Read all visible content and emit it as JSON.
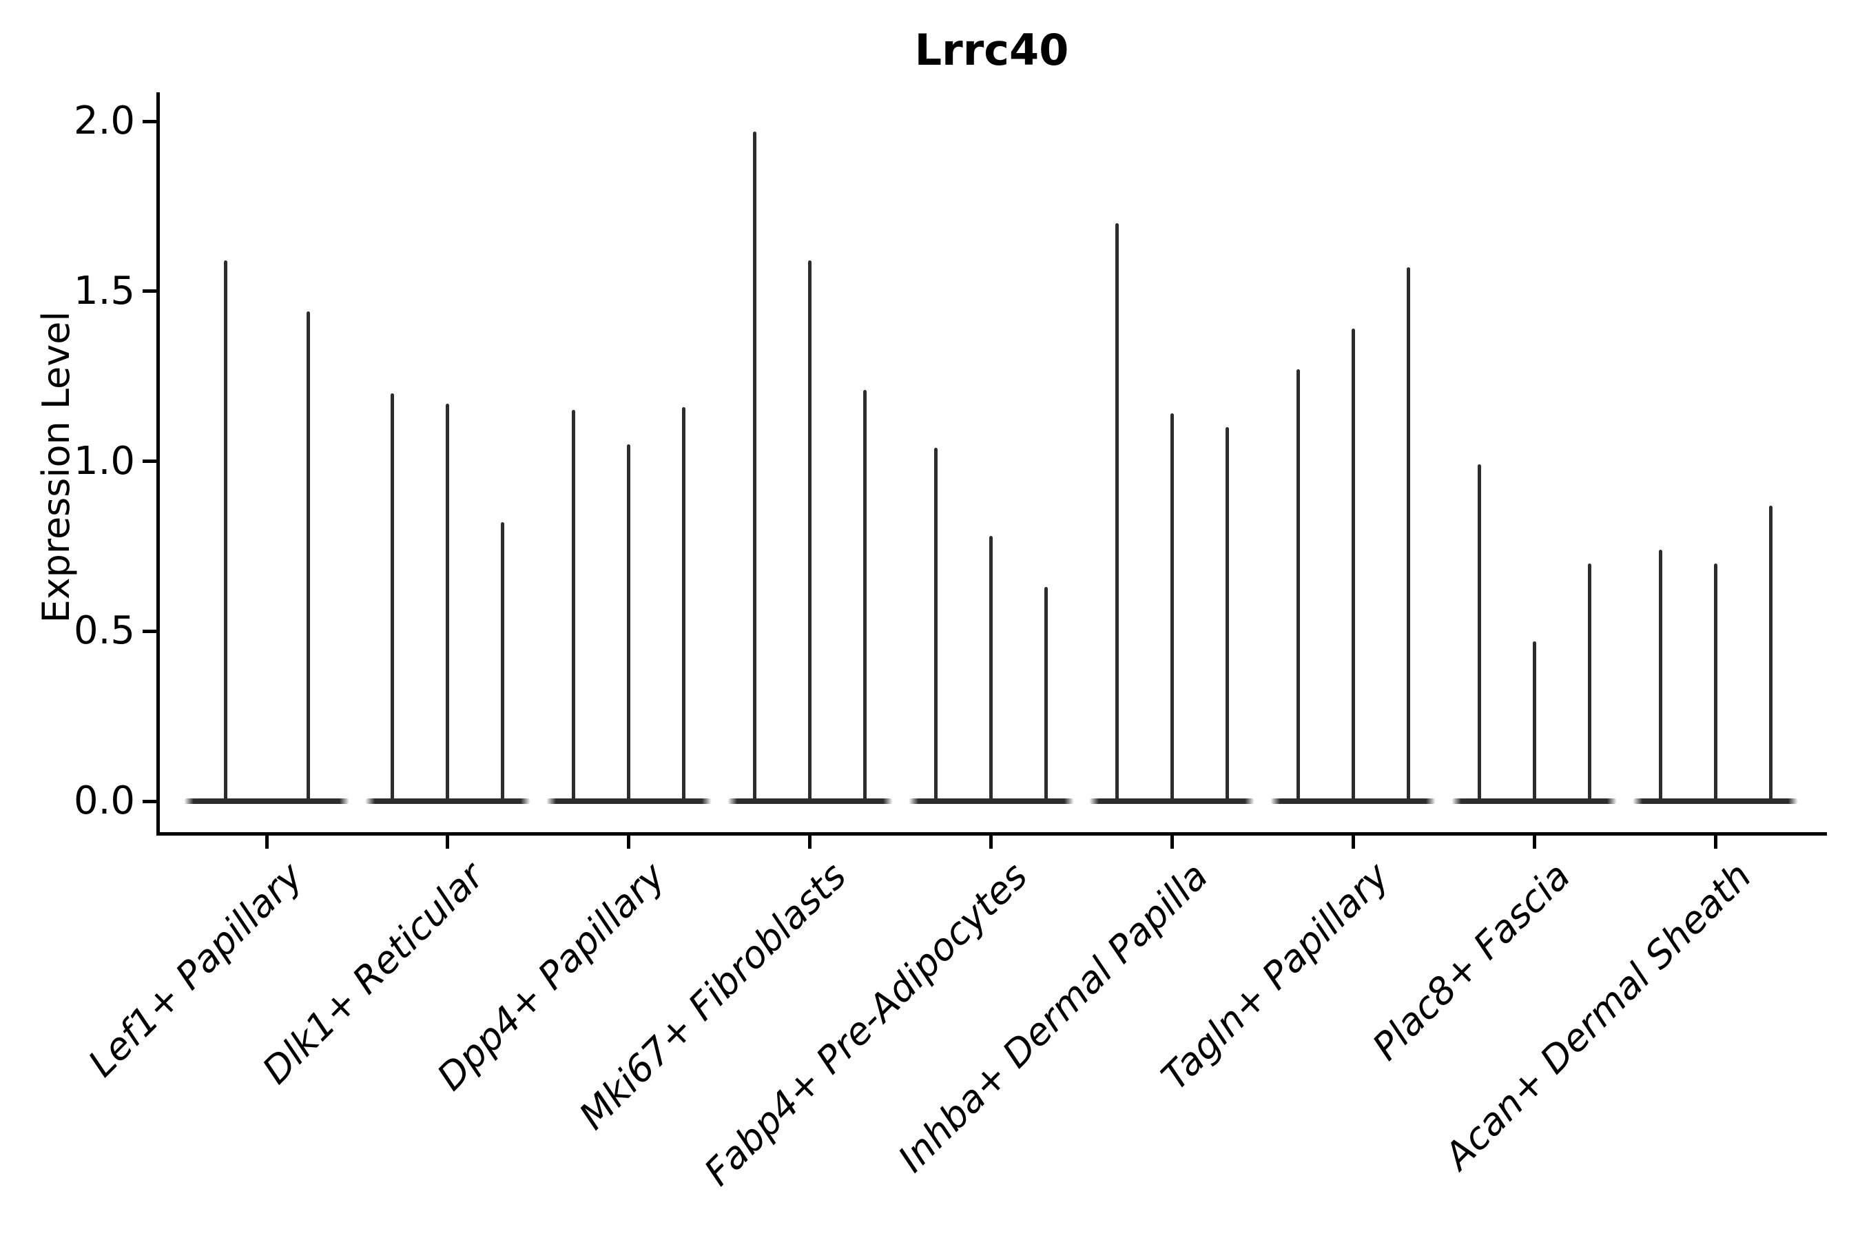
{
  "figure": {
    "title": "Lrrc40",
    "background": "#ffffff"
  },
  "y_axis": {
    "label": "Expression Level",
    "tick_labels": [
      "2.0",
      "1.5",
      "1.0",
      "0.5",
      "0.0"
    ]
  },
  "x_axis": {
    "categories": [
      "Lef1+ Papillary",
      "Dlk1+ Reticular",
      "Dpp4+ Papillary",
      "Mki67+ Fibroblasts",
      "Fabp4+ Pre-Adipocytes",
      "Inhba+ Dermal Papilla",
      "Tagln+ Papillary",
      "Plac8+ Fascia",
      "Acan+ Dermal Sheath"
    ]
  },
  "colors": {
    "violin": "#2d2d2d",
    "axis": "#000000",
    "text": "#000000",
    "background": "#ffffff"
  },
  "chart_data": {
    "type": "violin",
    "title": "Lrrc40",
    "xlabel": "",
    "ylabel": "Expression Level",
    "ylim": [
      -0.1,
      2.08
    ],
    "y_ticks": [
      2.0,
      1.5,
      1.0,
      0.5,
      0.0
    ],
    "grid": false,
    "legend": "none",
    "style_note": "zero-inflated single-cell expression violins: wide flat lens at 0 plus a thin needle up to the max expression value; Lef1+ Papillary has 2 violins, all other categories have 3",
    "categories": [
      "Lef1+ Papillary",
      "Dlk1+ Reticular",
      "Dpp4+ Papillary",
      "Mki67+ Fibroblasts",
      "Fabp4+ Pre-Adipocytes",
      "Inhba+ Dermal Papilla",
      "Tagln+ Papillary",
      "Plac8+ Fascia",
      "Acan+ Dermal Sheath"
    ],
    "violins": [
      {
        "category": "Lef1+ Papillary",
        "maxima": [
          1.59,
          1.44
        ]
      },
      {
        "category": "Dlk1+ Reticular",
        "maxima": [
          1.2,
          1.17,
          0.82
        ]
      },
      {
        "category": "Dpp4+ Papillary",
        "maxima": [
          1.15,
          1.05,
          1.16
        ]
      },
      {
        "category": "Mki67+ Fibroblasts",
        "maxima": [
          1.97,
          1.59,
          1.21
        ]
      },
      {
        "category": "Fabp4+ Pre-Adipocytes",
        "maxima": [
          1.04,
          0.78,
          0.63
        ]
      },
      {
        "category": "Inhba+ Dermal Papilla",
        "maxima": [
          1.7,
          1.14,
          1.1
        ]
      },
      {
        "category": "Tagln+ Papillary",
        "maxima": [
          1.27,
          1.39,
          1.57
        ]
      },
      {
        "category": "Plac8+ Fascia",
        "maxima": [
          0.99,
          0.47,
          0.7
        ]
      },
      {
        "category": "Acan+ Dermal Sheath",
        "maxima": [
          0.74,
          0.7,
          0.87
        ]
      }
    ]
  }
}
